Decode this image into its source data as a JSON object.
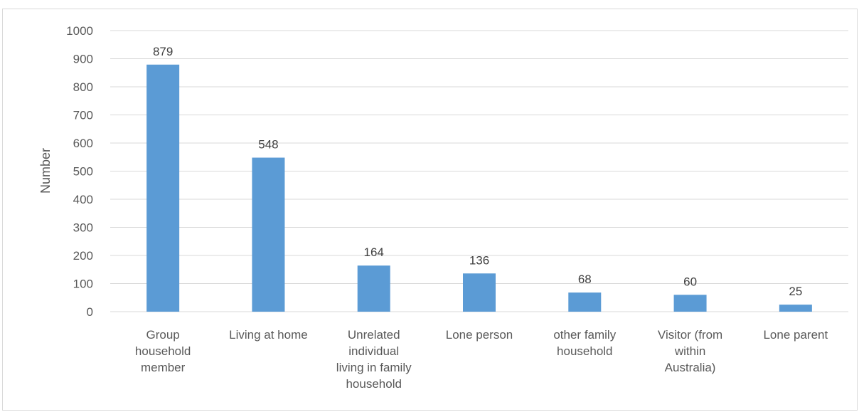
{
  "chart_data": {
    "type": "bar",
    "categories": [
      [
        "Group",
        "household",
        "member"
      ],
      [
        "Living at home"
      ],
      [
        "Unrelated",
        "individual",
        "living in family",
        "household"
      ],
      [
        "Lone person"
      ],
      [
        "other family",
        "household"
      ],
      [
        "Visitor (from",
        "within",
        "Australia)"
      ],
      [
        "Lone parent"
      ]
    ],
    "values": [
      879,
      548,
      164,
      136,
      68,
      60,
      25
    ],
    "ylabel": "Number",
    "ylim": [
      0,
      1000
    ],
    "yticks": [
      0,
      100,
      200,
      300,
      400,
      500,
      600,
      700,
      800,
      900,
      1000
    ],
    "grid": true,
    "legend": "none",
    "bar_color": "#5b9bd5",
    "grid_color": "#d9d9d9"
  }
}
